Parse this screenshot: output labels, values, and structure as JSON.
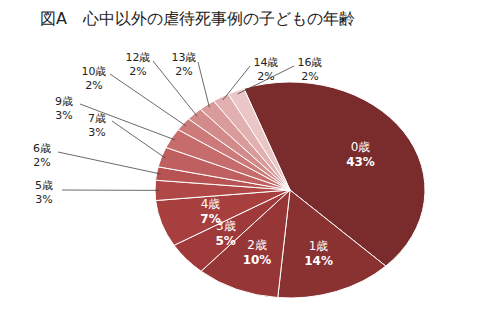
{
  "chart_data": {
    "type": "pie",
    "title": "図A　心中以外の虐待死事例の子どもの年齢",
    "categories": [
      "0歳",
      "1歳",
      "2歳",
      "3歳",
      "4歳",
      "5歳",
      "6歳",
      "7歳",
      "9歳",
      "10歳",
      "12歳",
      "13歳",
      "14歳",
      "16歳"
    ],
    "values": [
      43,
      14,
      10,
      5,
      7,
      3,
      2,
      3,
      3,
      2,
      2,
      2,
      2,
      2
    ],
    "value_labels": [
      "43%",
      "14%",
      "10%",
      "5%",
      "7%",
      "3%",
      "2%",
      "3%",
      "3%",
      "2%",
      "2%",
      "2%",
      "2%",
      "2%"
    ],
    "colors": [
      "#7a2b2b",
      "#8a3131",
      "#973636",
      "#a03a3a",
      "#a83f3f",
      "#b04848",
      "#b85353",
      "#bf5f5f",
      "#c66c6c",
      "#cc7a7a",
      "#d38a8a",
      "#da9b9b",
      "#e2b0b0",
      "#ebc6c6"
    ],
    "data_labels": true
  }
}
